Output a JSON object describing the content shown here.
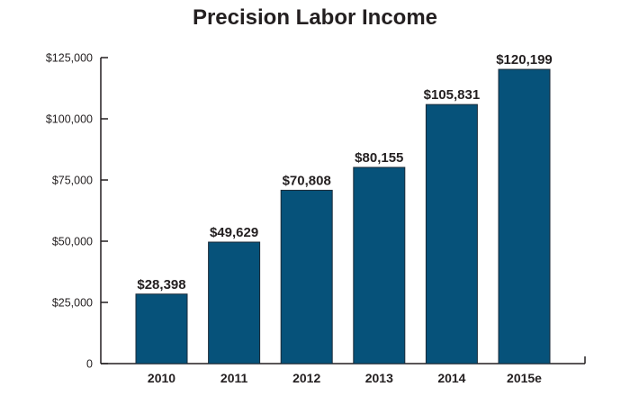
{
  "chart_data": {
    "type": "bar",
    "title": "Precision Labor Income",
    "categories": [
      "2010",
      "2011",
      "2012",
      "2013",
      "2014",
      "2015e"
    ],
    "values": [
      28398,
      49629,
      70808,
      80155,
      105831,
      120199
    ],
    "data_labels": [
      "$28,398",
      "$49,629",
      "$70,808",
      "$80,155",
      "$105,831",
      "$120,199"
    ],
    "yticks": [
      0,
      25000,
      50000,
      75000,
      100000,
      125000
    ],
    "ytick_labels": [
      "0",
      "$25,000",
      "$50,000",
      "$75,000",
      "$100,000",
      "$125,000"
    ],
    "ylim": [
      0,
      125000
    ],
    "xlabel": "",
    "ylabel": "",
    "grid": false,
    "bar_color": "#06527a",
    "bar_stroke": "#1a2a38"
  }
}
